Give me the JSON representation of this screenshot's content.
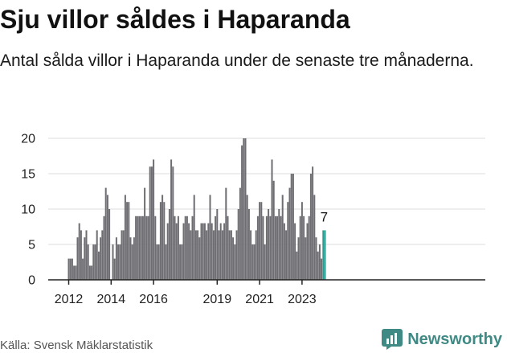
{
  "header": {
    "title": "Sju villor såldes i Haparanda",
    "subtitle": "Antal sålda villor i Haparanda under de senaste tre månaderna."
  },
  "footer": {
    "source": "Källa: Svensk Mäklarstatistik",
    "brand": "Newsworthy"
  },
  "colors": {
    "bar": "#6d6d72",
    "highlight": "#2a9d90",
    "axis": "#222222",
    "grid": "#dddddd",
    "brand": "#3f8a84"
  },
  "chart_data": {
    "type": "bar",
    "title": "",
    "xlabel": "",
    "ylabel": "",
    "ylim": [
      0,
      20
    ],
    "yticks": [
      "0",
      "5",
      "10",
      "15",
      "20"
    ],
    "xticks": [
      "2012",
      "2014",
      "2016",
      "2019",
      "2021",
      "2023"
    ],
    "last_value_label": "7",
    "start_month": "2012-01",
    "values": [
      3,
      3,
      3,
      2,
      2,
      6,
      8,
      7,
      3,
      6,
      7,
      5,
      2,
      2,
      5,
      5,
      7,
      4,
      6,
      7,
      9,
      13,
      12,
      10,
      0,
      5,
      3,
      6,
      5,
      5,
      7,
      7,
      12,
      11,
      11,
      6,
      5,
      6,
      9,
      9,
      9,
      9,
      9,
      13,
      9,
      9,
      16,
      16,
      17,
      9,
      5,
      5,
      11,
      12,
      11,
      5,
      8,
      10,
      17,
      16,
      9,
      8,
      9,
      5,
      5,
      8,
      9,
      9,
      8,
      7,
      9,
      12,
      7,
      7,
      6,
      8,
      8,
      8,
      7,
      8,
      12,
      8,
      7,
      9,
      10,
      7,
      8,
      7,
      8,
      13,
      9,
      7,
      7,
      6,
      5,
      7,
      10,
      13,
      19,
      20,
      20,
      12,
      10,
      7,
      5,
      5,
      7,
      9,
      11,
      11,
      9,
      5,
      9,
      10,
      9,
      17,
      14,
      9,
      9,
      10,
      9,
      12,
      8,
      7,
      11,
      13,
      15,
      15,
      8,
      4,
      6,
      9,
      11,
      9,
      6,
      8,
      9,
      15,
      16,
      12,
      6,
      4,
      5,
      3,
      7,
      7
    ],
    "highlight_last_n": 2
  }
}
